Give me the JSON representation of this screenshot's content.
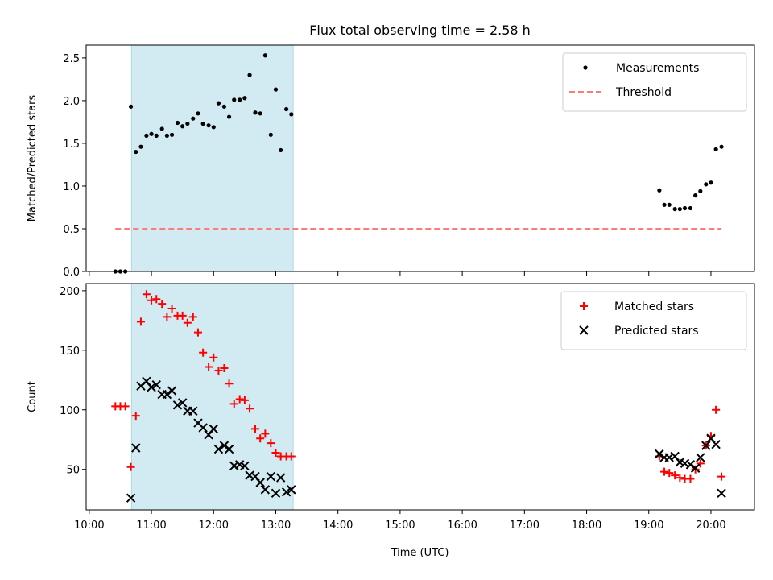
{
  "chart_data": [
    {
      "type": "scatter",
      "title": "Flux total observing time = 2.58 h",
      "ylabel": "Matched/Predicted stars",
      "xlabel": "",
      "xlim": [
        9.95,
        20.7
      ],
      "ylim": [
        0,
        2.65
      ],
      "yticks": [
        0.0,
        0.5,
        1.0,
        1.5,
        2.0,
        2.5
      ],
      "ytick_labels": [
        "0.0",
        "0.5",
        "1.0",
        "1.5",
        "2.0",
        "2.5"
      ],
      "grid": false,
      "legend": "top-right",
      "shaded_interval": {
        "x0": 10.68,
        "x1": 13.28,
        "color": "#add8e6"
      },
      "series": [
        {
          "name": "Measurements",
          "color": "#000000",
          "marker": "dot",
          "x": [
            10.42,
            10.5,
            10.58,
            10.67,
            10.75,
            10.83,
            10.92,
            11.0,
            11.08,
            11.17,
            11.25,
            11.33,
            11.42,
            11.5,
            11.58,
            11.67,
            11.75,
            11.83,
            11.92,
            12.0,
            12.08,
            12.17,
            12.25,
            12.33,
            12.42,
            12.5,
            12.58,
            12.67,
            12.75,
            12.83,
            12.92,
            13.0,
            13.08,
            13.17,
            13.25,
            19.17,
            19.25,
            19.33,
            19.42,
            19.5,
            19.58,
            19.67,
            19.75,
            19.83,
            19.92,
            20.0,
            20.08,
            20.17
          ],
          "y": [
            0.0,
            0.0,
            0.0,
            1.93,
            1.4,
            1.46,
            1.59,
            1.61,
            1.59,
            1.67,
            1.59,
            1.6,
            1.74,
            1.7,
            1.73,
            1.79,
            1.85,
            1.73,
            1.71,
            1.69,
            1.97,
            1.93,
            1.81,
            2.01,
            2.01,
            2.03,
            2.3,
            1.86,
            1.85,
            2.53,
            1.6,
            2.13,
            1.42,
            1.9,
            1.84,
            0.95,
            0.78,
            0.78,
            0.73,
            0.73,
            0.74,
            0.74,
            0.89,
            0.94,
            1.02,
            1.04,
            1.43,
            1.46
          ]
        },
        {
          "name": "Threshold",
          "color": "#ff7b7b",
          "style": "dashed",
          "x": [
            10.42,
            20.17
          ],
          "y": [
            0.5,
            0.5
          ]
        }
      ]
    },
    {
      "type": "scatter",
      "title": "",
      "ylabel": "Count",
      "xlabel": "Time (UTC)",
      "xlim": [
        9.95,
        20.7
      ],
      "ylim": [
        16,
        206
      ],
      "yticks": [
        50,
        100,
        150,
        200
      ],
      "ytick_labels": [
        "50",
        "100",
        "150",
        "200"
      ],
      "xticks": [
        10,
        11,
        12,
        13,
        14,
        15,
        16,
        17,
        18,
        19,
        20
      ],
      "xtick_labels": [
        "10:00",
        "11:00",
        "12:00",
        "13:00",
        "14:00",
        "15:00",
        "16:00",
        "17:00",
        "18:00",
        "19:00",
        "20:00"
      ],
      "grid": false,
      "legend": "top-right",
      "shaded_interval": {
        "x0": 10.68,
        "x1": 13.28,
        "color": "#add8e6"
      },
      "series": [
        {
          "name": "Matched stars",
          "color": "#ff0000",
          "marker": "plus",
          "x": [
            10.42,
            10.5,
            10.58,
            10.67,
            10.75,
            10.83,
            10.92,
            11.0,
            11.08,
            11.17,
            11.25,
            11.33,
            11.42,
            11.5,
            11.58,
            11.67,
            11.75,
            11.83,
            11.92,
            12.0,
            12.08,
            12.17,
            12.25,
            12.33,
            12.42,
            12.5,
            12.58,
            12.67,
            12.75,
            12.83,
            12.92,
            13.0,
            13.08,
            13.17,
            13.25,
            19.17,
            19.25,
            19.33,
            19.42,
            19.5,
            19.58,
            19.67,
            19.75,
            19.83,
            19.92,
            20.0,
            20.08,
            20.17
          ],
          "y": [
            103,
            103,
            103,
            52,
            95,
            174,
            197,
            192,
            193,
            189,
            178,
            185,
            179,
            179,
            173,
            178,
            165,
            148,
            136,
            144,
            133,
            135,
            122,
            105,
            109,
            108,
            101,
            84,
            76,
            80,
            72,
            64,
            61,
            61,
            61,
            61,
            48,
            47,
            45,
            43,
            42,
            42,
            50,
            55,
            70,
            78,
            100,
            44
          ]
        },
        {
          "name": "Predicted stars",
          "color": "#000000",
          "marker": "x",
          "x": [
            10.67,
            10.75,
            10.83,
            10.92,
            11.0,
            11.08,
            11.17,
            11.25,
            11.33,
            11.42,
            11.5,
            11.58,
            11.67,
            11.75,
            11.83,
            11.92,
            12.0,
            12.08,
            12.17,
            12.25,
            12.33,
            12.42,
            12.5,
            12.58,
            12.67,
            12.75,
            12.83,
            12.92,
            13.0,
            13.08,
            13.17,
            13.25,
            19.17,
            19.25,
            19.33,
            19.42,
            19.5,
            19.58,
            19.67,
            19.75,
            19.83,
            19.92,
            20.0,
            20.08,
            20.17
          ],
          "y": [
            26,
            68,
            120,
            124,
            119,
            121,
            113,
            113,
            116,
            104,
            106,
            99,
            99,
            89,
            85,
            79,
            84,
            67,
            70,
            67,
            53,
            54,
            53,
            45,
            44,
            39,
            33,
            44,
            30,
            43,
            31,
            33,
            63,
            60,
            60,
            61,
            56,
            55,
            54,
            51,
            60,
            70,
            76,
            71,
            30
          ]
        }
      ]
    }
  ]
}
